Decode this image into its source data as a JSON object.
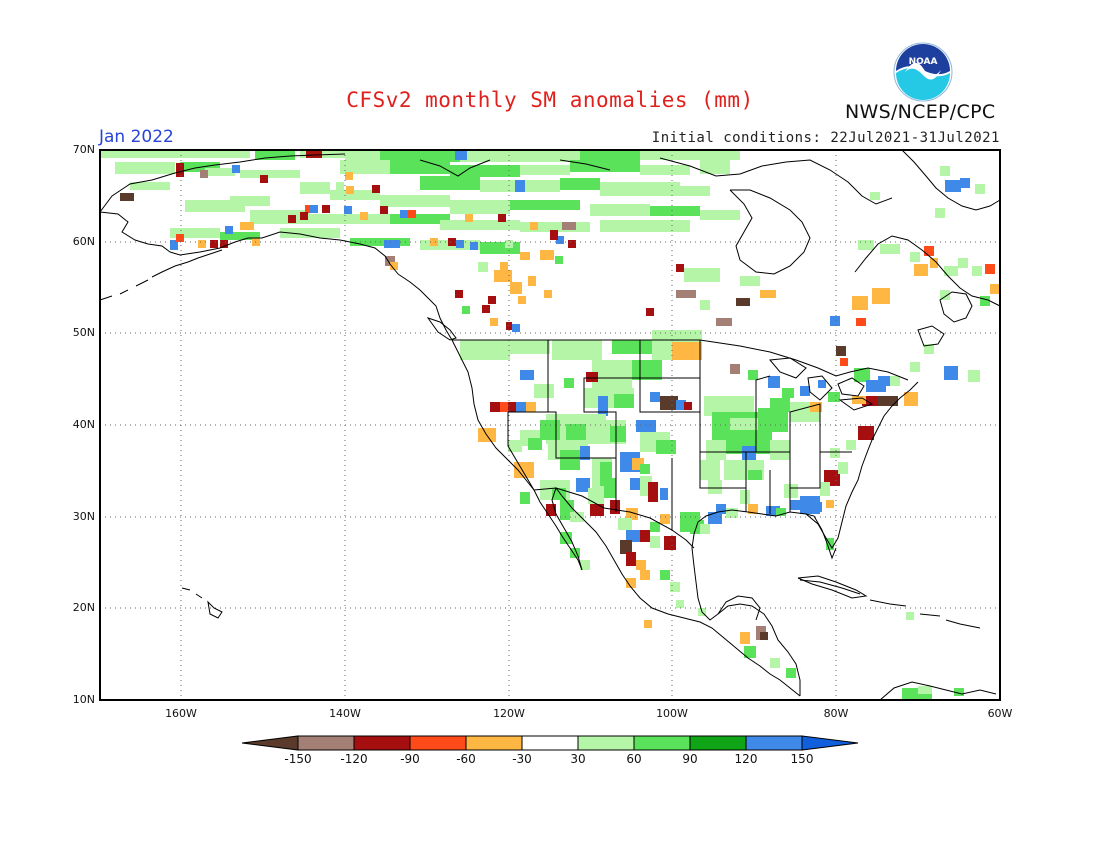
{
  "header": {
    "title": "CFSv2 monthly SM anomalies (mm)",
    "valid_month": "Jan 2022",
    "initial_conditions": "Initial conditions: 22Jul2021-31Jul2021",
    "agency": "NWS/NCEP/CPC",
    "logo_text": "NOAA"
  },
  "map": {
    "projection": "cylindrical equidistant",
    "lon_range": [
      -170,
      -60
    ],
    "lat_range": [
      10,
      70
    ],
    "lat_labels": [
      "70N",
      "60N",
      "50N",
      "40N",
      "30N",
      "20N",
      "10N"
    ],
    "lon_labels": [
      "160W",
      "140W",
      "120W",
      "100W",
      "80W",
      "60W"
    ],
    "gridlines": "dotted",
    "colors": {
      "frame": "#000000",
      "coast": "#000000",
      "grid": "#666666"
    }
  },
  "colorbar": {
    "levels": [
      "-150",
      "-120",
      "-90",
      "-60",
      "-30",
      "30",
      "60",
      "90",
      "120",
      "150"
    ],
    "colors": [
      "#5a3a2a",
      "#a47f75",
      "#a50f0f",
      "#ff4a1a",
      "#ffb743",
      "#ffffff",
      "#b5f5a8",
      "#5ae25a",
      "#10a516",
      "#3f8ae8",
      "#1060dd"
    ]
  }
}
